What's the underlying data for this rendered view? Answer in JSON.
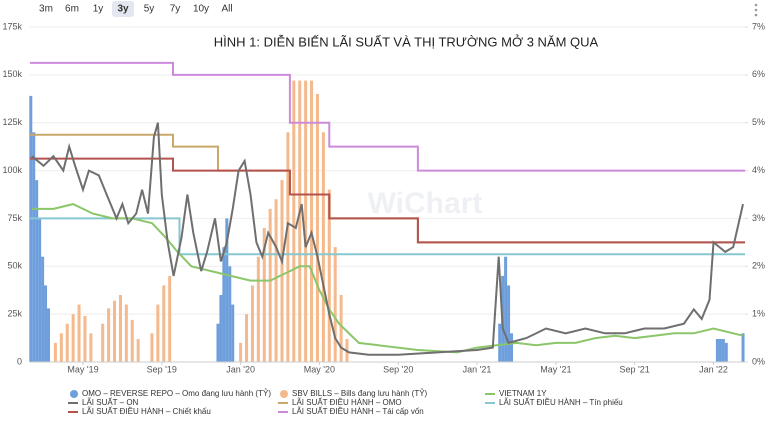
{
  "range_buttons": [
    "3m",
    "6m",
    "1y",
    "3y",
    "5y",
    "7y",
    "10y",
    "All"
  ],
  "selected_range": "3y",
  "chart_data": {
    "type": "combo",
    "title": "HÌNH 1: DIỄN BIẾN LÃI SUẤT VÀ THỊ TRƯỜNG MỞ 3 NĂM QUA",
    "watermark": "WiChart",
    "xlim": [
      1.31,
      37.6
    ],
    "xticks": [
      {
        "value": 4,
        "label": "May '19"
      },
      {
        "value": 8,
        "label": "Sep '19"
      },
      {
        "value": 12,
        "label": "Jan '20"
      },
      {
        "value": 16,
        "label": "May '20"
      },
      {
        "value": 20,
        "label": "Sep '20"
      },
      {
        "value": 24,
        "label": "Jan '21"
      },
      {
        "value": 28,
        "label": "May '21"
      },
      {
        "value": 32,
        "label": "Sep '21"
      },
      {
        "value": 36,
        "label": "Jan '22"
      }
    ],
    "ylim": [
      0,
      175000
    ],
    "yticks": [
      0,
      {
        "value": 25000,
        "label": "25k"
      },
      {
        "value": 50000,
        "label": "50k"
      },
      {
        "value": 75000,
        "label": "75k"
      },
      {
        "value": 100000,
        "label": "100k"
      },
      {
        "value": 125000,
        "label": "125k"
      },
      {
        "value": 150000,
        "label": "150k"
      },
      {
        "value": 175000,
        "label": "175k"
      }
    ],
    "y2lim": [
      0,
      7
    ],
    "y2ticks": [
      {
        "value": 0,
        "label": "0%"
      },
      {
        "value": 1,
        "label": "1%"
      },
      {
        "value": 2,
        "label": "2%"
      },
      {
        "value": 3,
        "label": "3%"
      },
      {
        "value": 4,
        "label": "4%"
      },
      {
        "value": 5,
        "label": "5%"
      },
      {
        "value": 6,
        "label": "6%"
      },
      {
        "value": 7,
        "label": "7%"
      }
    ],
    "grid": true,
    "series": [
      {
        "name": "OMO – REVERSE REPO – Omo đang lưu hành (TỶ)",
        "type": "bar",
        "color": "#6e9fdc",
        "x": [
          1.35,
          1.5,
          1.65,
          1.8,
          1.95,
          2.1,
          2.25,
          10.85,
          11.0,
          11.15,
          11.3,
          11.45,
          11.6,
          25.15,
          25.3,
          25.45,
          25.6,
          25.75,
          36.2,
          36.35,
          36.5,
          36.65,
          37.5
        ],
        "values": [
          139000,
          120000,
          95000,
          75000,
          55000,
          40000,
          28000,
          20000,
          35000,
          60000,
          75000,
          50000,
          30000,
          20000,
          45000,
          55000,
          40000,
          15000,
          12000,
          12000,
          12000,
          10000,
          15000
        ]
      },
      {
        "name": "SBV BILLS – Bills đang lưu hành (TỶ)",
        "type": "bar",
        "color": "#f4b98c",
        "x": [
          2.6,
          2.9,
          3.2,
          3.5,
          3.8,
          4.1,
          4.4,
          5.0,
          5.3,
          5.6,
          5.9,
          6.2,
          6.5,
          6.8,
          7.5,
          7.8,
          8.1,
          8.4,
          12.0,
          12.3,
          12.6,
          12.9,
          13.2,
          13.5,
          13.8,
          14.1,
          14.4,
          14.7,
          15.0,
          15.3,
          15.6,
          15.9,
          16.2,
          16.5,
          16.8,
          17.1,
          17.4
        ],
        "values": [
          10000,
          15000,
          20000,
          25000,
          30000,
          24000,
          15000,
          20000,
          28000,
          32000,
          35000,
          30000,
          22000,
          12000,
          15000,
          30000,
          40000,
          45000,
          10000,
          25000,
          40000,
          55000,
          70000,
          80000,
          85000,
          95000,
          120000,
          147000,
          147000,
          147000,
          147000,
          140000,
          120000,
          90000,
          60000,
          35000,
          12000
        ]
      },
      {
        "name": "VIETNAM 1Y",
        "type": "line",
        "axis": "y2",
        "color": "#8cc66a",
        "x": [
          1.4,
          2.5,
          3.5,
          4.5,
          5.5,
          6.5,
          7.5,
          8.2,
          8.8,
          9.5,
          10.5,
          11.5,
          12.5,
          13.5,
          14.0,
          14.5,
          15.0,
          15.5,
          16.0,
          16.5,
          17.0,
          18.0,
          19.0,
          21.0,
          23.0,
          24.0,
          25.0,
          26.0,
          27.0,
          28.0,
          29.0,
          30.0,
          31.0,
          32.0,
          33.0,
          34.0,
          35.0,
          36.0,
          37.0,
          37.5
        ],
        "values": [
          3.2,
          3.2,
          3.3,
          3.1,
          3.0,
          3.0,
          2.9,
          2.6,
          2.3,
          2.0,
          1.9,
          1.8,
          1.7,
          1.7,
          1.8,
          1.9,
          2.0,
          2.0,
          1.5,
          1.1,
          0.8,
          0.4,
          0.35,
          0.25,
          0.2,
          0.3,
          0.35,
          0.4,
          0.35,
          0.4,
          0.4,
          0.5,
          0.55,
          0.5,
          0.55,
          0.6,
          0.6,
          0.7,
          0.6,
          0.55
        ]
      },
      {
        "name": "LÃI SUẤT – ON",
        "type": "line",
        "axis": "y2",
        "color": "#6f6f6f",
        "x": [
          1.4,
          2.0,
          2.5,
          3.0,
          3.3,
          3.6,
          4.0,
          4.3,
          4.8,
          5.3,
          5.7,
          6.0,
          6.3,
          6.7,
          7.0,
          7.3,
          7.6,
          7.8,
          8.0,
          8.3,
          8.6,
          9.0,
          9.3,
          9.6,
          10.0,
          10.3,
          10.7,
          11.0,
          11.3,
          11.6,
          11.9,
          12.2,
          12.5,
          12.8,
          13.1,
          13.4,
          13.8,
          14.1,
          14.4,
          14.8,
          15.1,
          15.3,
          15.6,
          15.9,
          16.2,
          16.5,
          16.8,
          17.1,
          17.5,
          18.5,
          20.0,
          22.0,
          24.0,
          24.8,
          25.1,
          25.3,
          25.6,
          26.5,
          27.5,
          28.5,
          29.5,
          30.5,
          31.5,
          32.5,
          33.5,
          34.5,
          35.0,
          35.4,
          35.8,
          36.0,
          36.3,
          36.6,
          37.0,
          37.5
        ],
        "values": [
          4.3,
          4.1,
          4.3,
          4.0,
          4.5,
          4.1,
          3.6,
          4.0,
          3.9,
          3.4,
          3.0,
          3.3,
          2.9,
          3.1,
          3.6,
          3.1,
          4.7,
          5.0,
          3.5,
          2.5,
          1.8,
          2.6,
          3.5,
          2.7,
          1.9,
          2.3,
          3.0,
          2.1,
          2.5,
          3.2,
          4.0,
          4.2,
          3.5,
          2.5,
          2.2,
          2.7,
          2.4,
          2.1,
          2.9,
          2.8,
          3.3,
          2.4,
          2.7,
          2.2,
          1.6,
          1.0,
          0.5,
          0.3,
          0.2,
          0.15,
          0.15,
          0.2,
          0.25,
          0.3,
          2.2,
          0.7,
          0.4,
          0.5,
          0.7,
          0.6,
          0.7,
          0.6,
          0.6,
          0.7,
          0.7,
          0.8,
          1.1,
          0.9,
          1.3,
          2.5,
          2.4,
          2.3,
          2.4,
          3.3
        ]
      },
      {
        "name": "LÃI SUẤT ĐIỀU HÀNH – OMO",
        "type": "line",
        "axis": "y2",
        "color": "#c9a96a",
        "x": [
          1.31,
          8.57,
          8.57,
          10.85,
          10.85,
          14.5,
          14.5,
          16.5,
          16.5,
          21.0,
          21.0,
          37.6
        ],
        "values": [
          4.75,
          4.75,
          4.5,
          4.5,
          4.0,
          4.0,
          3.5,
          3.5,
          3.0,
          3.0,
          2.5,
          2.5
        ]
      },
      {
        "name": "LÃI SUẤT ĐIỀU HÀNH – Tín phiếu",
        "type": "line",
        "axis": "y2",
        "color": "#86c7d2",
        "x": [
          1.31,
          8.9,
          8.9,
          37.6
        ],
        "values": [
          3.0,
          3.0,
          2.25,
          2.25
        ]
      },
      {
        "name": "LÃI SUẤT ĐIỀU HÀNH – Chiết khấu",
        "type": "line",
        "axis": "y2",
        "color": "#b4524e",
        "x": [
          1.31,
          8.57,
          8.57,
          14.5,
          14.5,
          16.5,
          16.5,
          21.0,
          21.0,
          37.6
        ],
        "values": [
          4.25,
          4.25,
          4.0,
          4.0,
          3.5,
          3.5,
          3.0,
          3.0,
          2.5,
          2.5
        ]
      },
      {
        "name": "LÃI SUẤT ĐIỀU HÀNH – Tái cấp vốn",
        "type": "line",
        "axis": "y2",
        "color": "#cc8adb",
        "x": [
          1.31,
          8.57,
          8.57,
          14.5,
          14.5,
          16.5,
          16.5,
          21.0,
          21.0,
          37.6
        ],
        "values": [
          6.25,
          6.25,
          6.0,
          6.0,
          5.0,
          5.0,
          4.5,
          4.5,
          4.0,
          4.0
        ]
      }
    ]
  }
}
